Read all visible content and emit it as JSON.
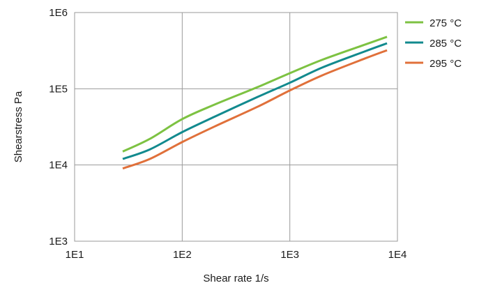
{
  "chart_data": {
    "type": "line",
    "xlabel": "Shear rate  1/s",
    "ylabel": "Shearstress  Pa",
    "x_scale": "log",
    "y_scale": "log",
    "xlim": [
      10,
      10000
    ],
    "ylim": [
      1000,
      1000000
    ],
    "grid": true,
    "legend_position": "right",
    "x_ticks": [
      {
        "value": 10,
        "label": "1E1"
      },
      {
        "value": 100,
        "label": "1E2"
      },
      {
        "value": 1000,
        "label": "1E3"
      },
      {
        "value": 10000,
        "label": "1E4"
      }
    ],
    "y_ticks": [
      {
        "value": 1000,
        "label": "1E3"
      },
      {
        "value": 10000,
        "label": "1E4"
      },
      {
        "value": 100000,
        "label": "1E5"
      },
      {
        "value": 1000000,
        "label": "1E6"
      }
    ],
    "series": [
      {
        "name": "275 °C",
        "color": "#7dc242",
        "x": [
          28,
          50,
          100,
          200,
          500,
          1000,
          2000,
          5000,
          8000
        ],
        "y": [
          15000,
          22000,
          40000,
          62000,
          105000,
          160000,
          240000,
          380000,
          480000
        ]
      },
      {
        "name": "285 °C",
        "color": "#128a8e",
        "x": [
          28,
          50,
          100,
          200,
          500,
          1000,
          2000,
          5000,
          8000
        ],
        "y": [
          12000,
          16000,
          27000,
          43000,
          78000,
          120000,
          190000,
          310000,
          395000
        ]
      },
      {
        "name": "295 °C",
        "color": "#e0703a",
        "x": [
          28,
          50,
          100,
          200,
          500,
          1000,
          2000,
          5000,
          8000
        ],
        "y": [
          9000,
          12000,
          20000,
          32000,
          58000,
          95000,
          150000,
          250000,
          320000
        ]
      }
    ]
  }
}
